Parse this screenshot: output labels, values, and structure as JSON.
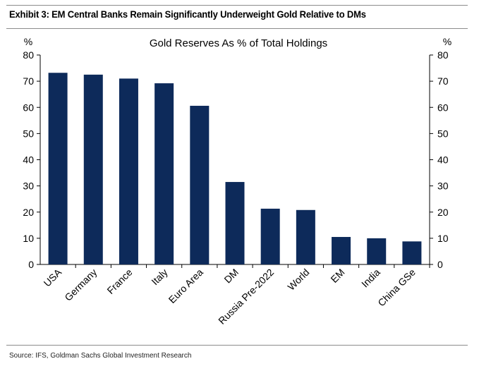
{
  "exhibit": {
    "title": "Exhibit 3: EM Central Banks Remain Significantly Underweight Gold Relative to DMs",
    "source": "Source: IFS, Goldman Sachs Global Investment Research"
  },
  "colors": {
    "bar": "#0d2a5a",
    "text": "#000000",
    "rule": "#8c8c8c"
  },
  "chart_data": {
    "type": "bar",
    "title": "Gold Reserves As % of Total Holdings",
    "ylabel_left": "%",
    "ylabel_right": "%",
    "ylim": [
      0,
      80
    ],
    "yticks": [
      0,
      10,
      20,
      30,
      40,
      50,
      60,
      70,
      80
    ],
    "grid": false,
    "categories": [
      "USA",
      "Germany",
      "France",
      "Italy",
      "Euro Area",
      "DM",
      "Russia Pre-2022",
      "World",
      "EM",
      "India",
      "China GSe"
    ],
    "values": [
      73.2,
      72.5,
      71.0,
      69.2,
      60.6,
      31.5,
      21.3,
      20.8,
      10.5,
      10.0,
      8.8
    ]
  }
}
